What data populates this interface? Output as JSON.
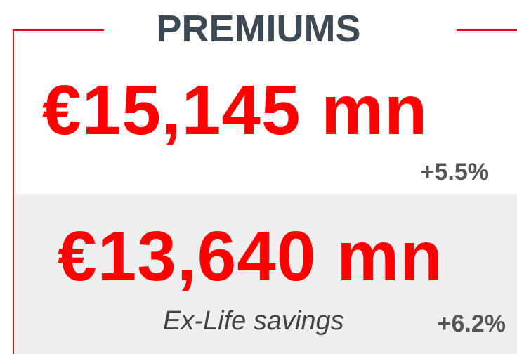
{
  "header": {
    "title": "PREMIUMS"
  },
  "primary": {
    "value": "€15,145 mn",
    "change": "+5.5%"
  },
  "secondary": {
    "value": "€13,640 mn",
    "note": "Ex-Life savings",
    "change": "+6.2%"
  }
}
